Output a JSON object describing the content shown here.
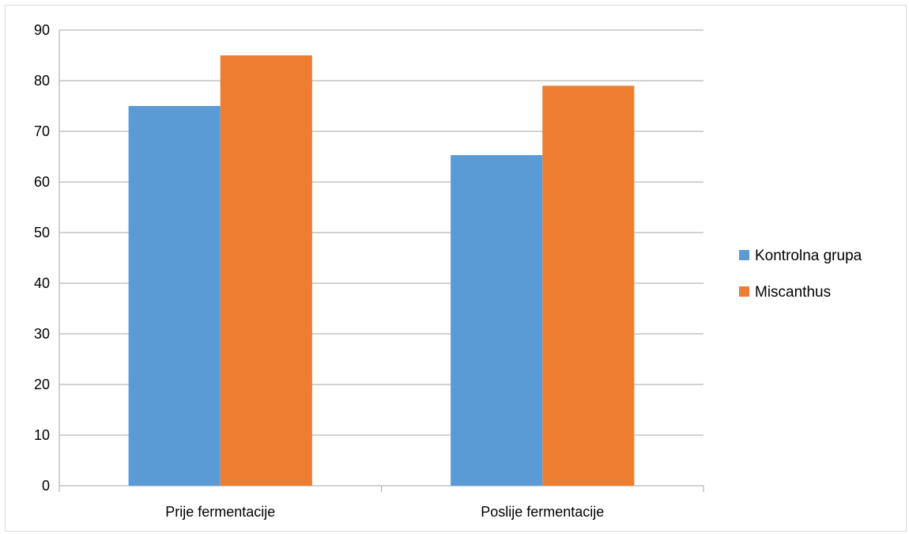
{
  "chart_data": {
    "type": "bar",
    "title": "",
    "xlabel": "",
    "ylabel": "",
    "categories": [
      "Prije fermentacije",
      "Poslije fermentacije"
    ],
    "series": [
      {
        "name": "Kontrolna grupa",
        "values": [
          75,
          65.3
        ],
        "color": "#5b9bd5"
      },
      {
        "name": "Miscanthus",
        "values": [
          85,
          79
        ],
        "color": "#ed7d31"
      }
    ],
    "ylim": [
      0,
      90
    ],
    "yticks": [
      0,
      10,
      20,
      30,
      40,
      50,
      60,
      70,
      80,
      90
    ],
    "grid": true,
    "legend_position": "right",
    "gridline_color": "#a6a6a6"
  }
}
